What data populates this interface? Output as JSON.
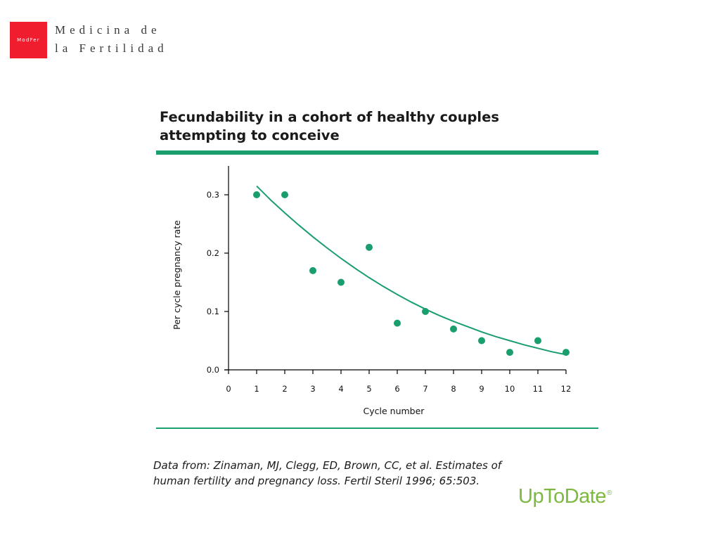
{
  "logo": {
    "mark": "ModFer",
    "line1": "Medicina de",
    "line2": "la Fertilidad"
  },
  "figure": {
    "title_line1": "Fecundability in a cohort of healthy couples",
    "title_line2": "attempting to conceive",
    "source_line1": "Data from: Zinaman, MJ, Clegg, ED, Brown, CC, et al. Estimates of",
    "source_line2": "human fertility and pregnancy loss. Fertil Steril 1996; 65:503.",
    "brand": "UpToDate",
    "brand_mark": "®"
  },
  "colors": {
    "accent": "#1a9e6e",
    "logo_red": "#ef1d2d",
    "brand_green": "#7cb940"
  },
  "chart_data": {
    "type": "scatter",
    "title": "",
    "xlabel": "Cycle number",
    "ylabel": "Per cycle pregnancy rate",
    "xlim": [
      0,
      12
    ],
    "ylim": [
      0,
      0.35
    ],
    "x_ticks": [
      0,
      1,
      2,
      3,
      4,
      5,
      6,
      7,
      8,
      9,
      10,
      11,
      12
    ],
    "y_ticks": [
      0.0,
      0.1,
      0.2,
      0.3
    ],
    "y_tick_labels": [
      "0.0",
      "0.1",
      "0.2",
      "0.3"
    ],
    "grid": false,
    "legend": false,
    "series": [
      {
        "type": "scatter",
        "x": [
          1,
          2,
          3,
          4,
          5,
          6,
          7,
          8,
          9,
          10,
          11,
          12
        ],
        "y": [
          0.3,
          0.3,
          0.17,
          0.15,
          0.21,
          0.08,
          0.1,
          0.07,
          0.05,
          0.03,
          0.05,
          0.03
        ]
      },
      {
        "type": "line",
        "x": [
          1,
          1.5,
          2,
          2.5,
          3,
          3.5,
          4,
          4.5,
          5,
          5.5,
          6,
          6.5,
          7,
          7.5,
          8,
          8.5,
          9,
          9.5,
          10,
          10.5,
          11,
          11.5,
          12
        ],
        "y": [
          0.315,
          0.291,
          0.269,
          0.248,
          0.228,
          0.209,
          0.191,
          0.174,
          0.158,
          0.143,
          0.129,
          0.116,
          0.104,
          0.093,
          0.083,
          0.074,
          0.065,
          0.057,
          0.05,
          0.043,
          0.037,
          0.031,
          0.026
        ]
      }
    ]
  }
}
